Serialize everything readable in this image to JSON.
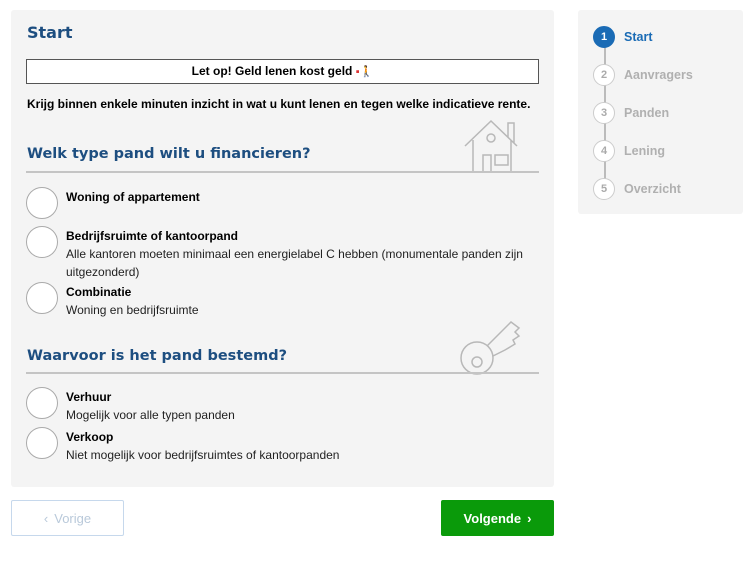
{
  "main": {
    "title": "Start",
    "notice": "Let op! Geld lenen kost geld",
    "intro": "Krijg binnen enkele minuten inzicht in wat u kunt lenen en tegen welke indicatieve rente.",
    "section1": {
      "heading": "Welk type pand wilt u financieren?",
      "icon": "house-icon",
      "options": [
        {
          "label": "Woning of appartement",
          "desc": ""
        },
        {
          "label": "Bedrijfsruimte of kantoorpand",
          "desc": "Alle kantoren moeten minimaal een energielabel C hebben (monumentale panden zijn uitgezonderd)"
        },
        {
          "label": "Combinatie",
          "desc": "Woning en bedrijfsruimte"
        }
      ]
    },
    "section2": {
      "heading": "Waarvoor is het pand bestemd?",
      "icon": "key-icon",
      "options": [
        {
          "label": "Verhuur",
          "desc": "Mogelijk voor alle typen panden"
        },
        {
          "label": "Verkoop",
          "desc": "Niet mogelijk voor bedrijfsruimtes of kantoorpanden"
        }
      ]
    }
  },
  "buttons": {
    "prev": "Vorige",
    "next": "Volgende"
  },
  "steps": [
    {
      "num": "1",
      "label": "Start"
    },
    {
      "num": "2",
      "label": "Aanvragers"
    },
    {
      "num": "3",
      "label": "Panden"
    },
    {
      "num": "4",
      "label": "Lening"
    },
    {
      "num": "5",
      "label": "Overzicht"
    }
  ],
  "colors": {
    "brand": "#1d4e80",
    "accent": "#1a6bb5",
    "next_button": "#0a9a0a"
  }
}
